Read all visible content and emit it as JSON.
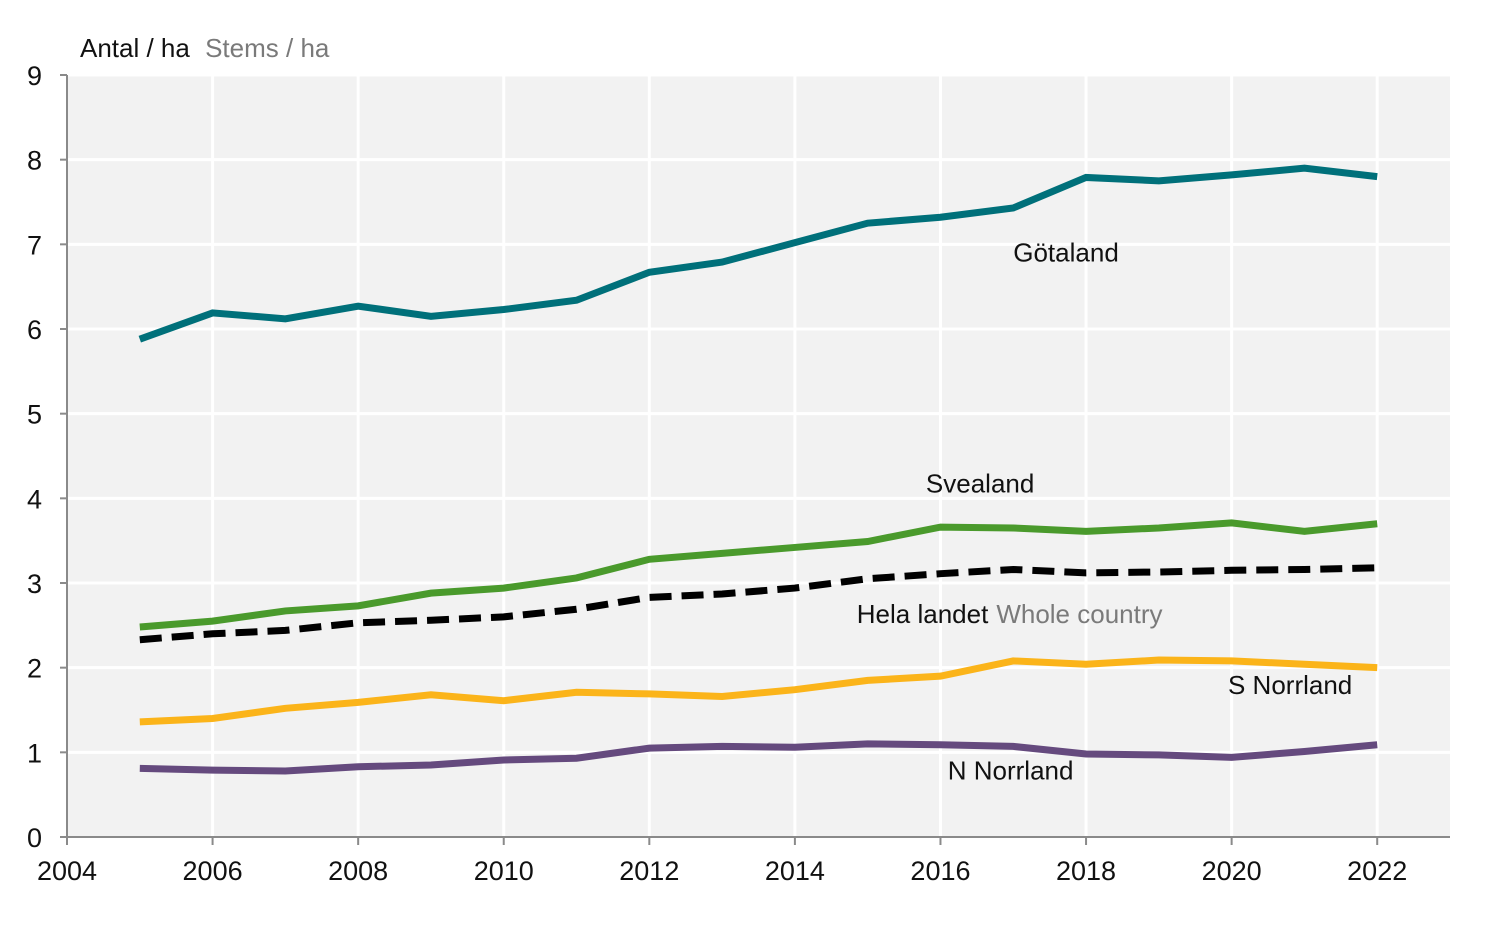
{
  "chart_data": {
    "type": "line",
    "title": "",
    "ylabel": {
      "primary": "Antal / ha",
      "secondary": "Stems / ha"
    },
    "xlabel": "",
    "xlim": [
      2004,
      2023
    ],
    "ylim": [
      0,
      9
    ],
    "x_ticks": [
      2004,
      2006,
      2008,
      2010,
      2012,
      2014,
      2016,
      2018,
      2020,
      2022
    ],
    "y_ticks": [
      0,
      1,
      2,
      3,
      4,
      5,
      6,
      7,
      8,
      9
    ],
    "grid": true,
    "background": "#f2f2f2",
    "x": [
      2005,
      2006,
      2007,
      2008,
      2009,
      2010,
      2011,
      2012,
      2013,
      2014,
      2015,
      2016,
      2017,
      2018,
      2019,
      2020,
      2021,
      2022
    ],
    "series": [
      {
        "name": "Götaland",
        "label": "Götaland",
        "label_en": "",
        "color": "#00707a",
        "dashed": false,
        "label_anchor": {
          "x": 2017.0,
          "y": 6.8
        },
        "values": [
          5.88,
          6.19,
          6.12,
          6.27,
          6.15,
          6.23,
          6.34,
          6.67,
          6.79,
          7.02,
          7.25,
          7.32,
          7.43,
          7.79,
          7.75,
          7.82,
          7.9,
          7.8
        ]
      },
      {
        "name": "Svealand",
        "label": "Svealand",
        "label_en": "",
        "color": "#4a9a2c",
        "dashed": false,
        "label_anchor": {
          "x": 2015.8,
          "y": 4.07
        },
        "values": [
          2.48,
          2.55,
          2.67,
          2.73,
          2.88,
          2.94,
          3.06,
          3.28,
          3.35,
          3.42,
          3.49,
          3.66,
          3.65,
          3.61,
          3.65,
          3.71,
          3.61,
          3.7
        ]
      },
      {
        "name": "Hela landet",
        "label": "Hela landet",
        "label_en": "Whole country",
        "color": "#000000",
        "dashed": true,
        "label_anchor": {
          "x": 2014.85,
          "y": 2.53
        },
        "values": [
          2.33,
          2.4,
          2.44,
          2.53,
          2.56,
          2.6,
          2.69,
          2.83,
          2.87,
          2.94,
          3.05,
          3.11,
          3.16,
          3.12,
          3.13,
          3.15,
          3.16,
          3.18
        ]
      },
      {
        "name": "S Norrland",
        "label": "S Norrland",
        "label_en": "",
        "color": "#fbb41a",
        "dashed": false,
        "label_anchor": {
          "x": 2019.95,
          "y": 1.69
        },
        "values": [
          1.36,
          1.4,
          1.52,
          1.59,
          1.68,
          1.61,
          1.71,
          1.69,
          1.66,
          1.74,
          1.85,
          1.9,
          2.08,
          2.04,
          2.09,
          2.08,
          2.04,
          2.0
        ]
      },
      {
        "name": "N Norrland",
        "label": "N Norrland",
        "label_en": "",
        "color": "#654a7e",
        "dashed": false,
        "label_anchor": {
          "x": 2016.1,
          "y": 0.68
        },
        "values": [
          0.81,
          0.79,
          0.78,
          0.83,
          0.85,
          0.91,
          0.93,
          1.05,
          1.07,
          1.06,
          1.1,
          1.09,
          1.07,
          0.98,
          0.97,
          0.94,
          1.01,
          1.09
        ]
      }
    ]
  }
}
